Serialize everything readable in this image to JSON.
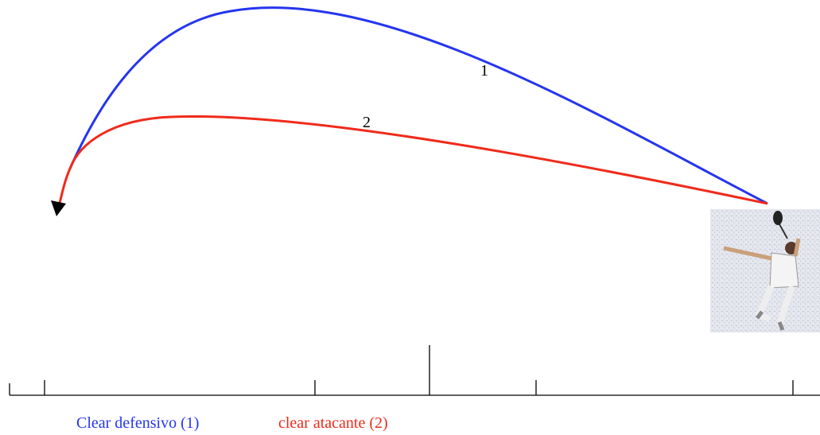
{
  "labels": {
    "trajectory_1": "1",
    "trajectory_2": "2"
  },
  "caption": {
    "defensive": "Clear defensivo (1)",
    "attacking": "clear atacante (2)"
  }
}
